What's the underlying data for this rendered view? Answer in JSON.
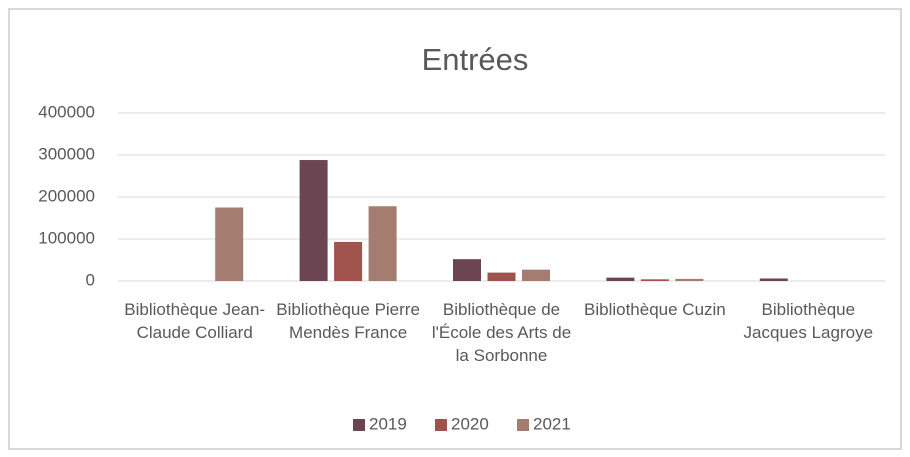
{
  "chart_data": {
    "type": "bar",
    "title": "Entrées",
    "categories": [
      "Bibliothèque Jean-Claude Colliard",
      "Bibliothèque Pierre Mendès France",
      "Bibliothèque de l'École des Arts de la Sorbonne",
      "Bibliothèque Cuzin",
      "Bibliothèque Jacques Lagroye"
    ],
    "series": [
      {
        "name": "2019",
        "color": "#6b4652",
        "values": [
          null,
          288000,
          52000,
          8000,
          6000
        ]
      },
      {
        "name": "2020",
        "color": "#a0524d",
        "values": [
          null,
          93000,
          20000,
          4000,
          null
        ]
      },
      {
        "name": "2021",
        "color": "#a57d70",
        "values": [
          175000,
          178000,
          27000,
          5000,
          null
        ]
      }
    ],
    "ylim": [
      0,
      400000
    ],
    "yticks": [
      0,
      100000,
      200000,
      300000,
      400000
    ],
    "grid": true,
    "legend": "bottom"
  }
}
